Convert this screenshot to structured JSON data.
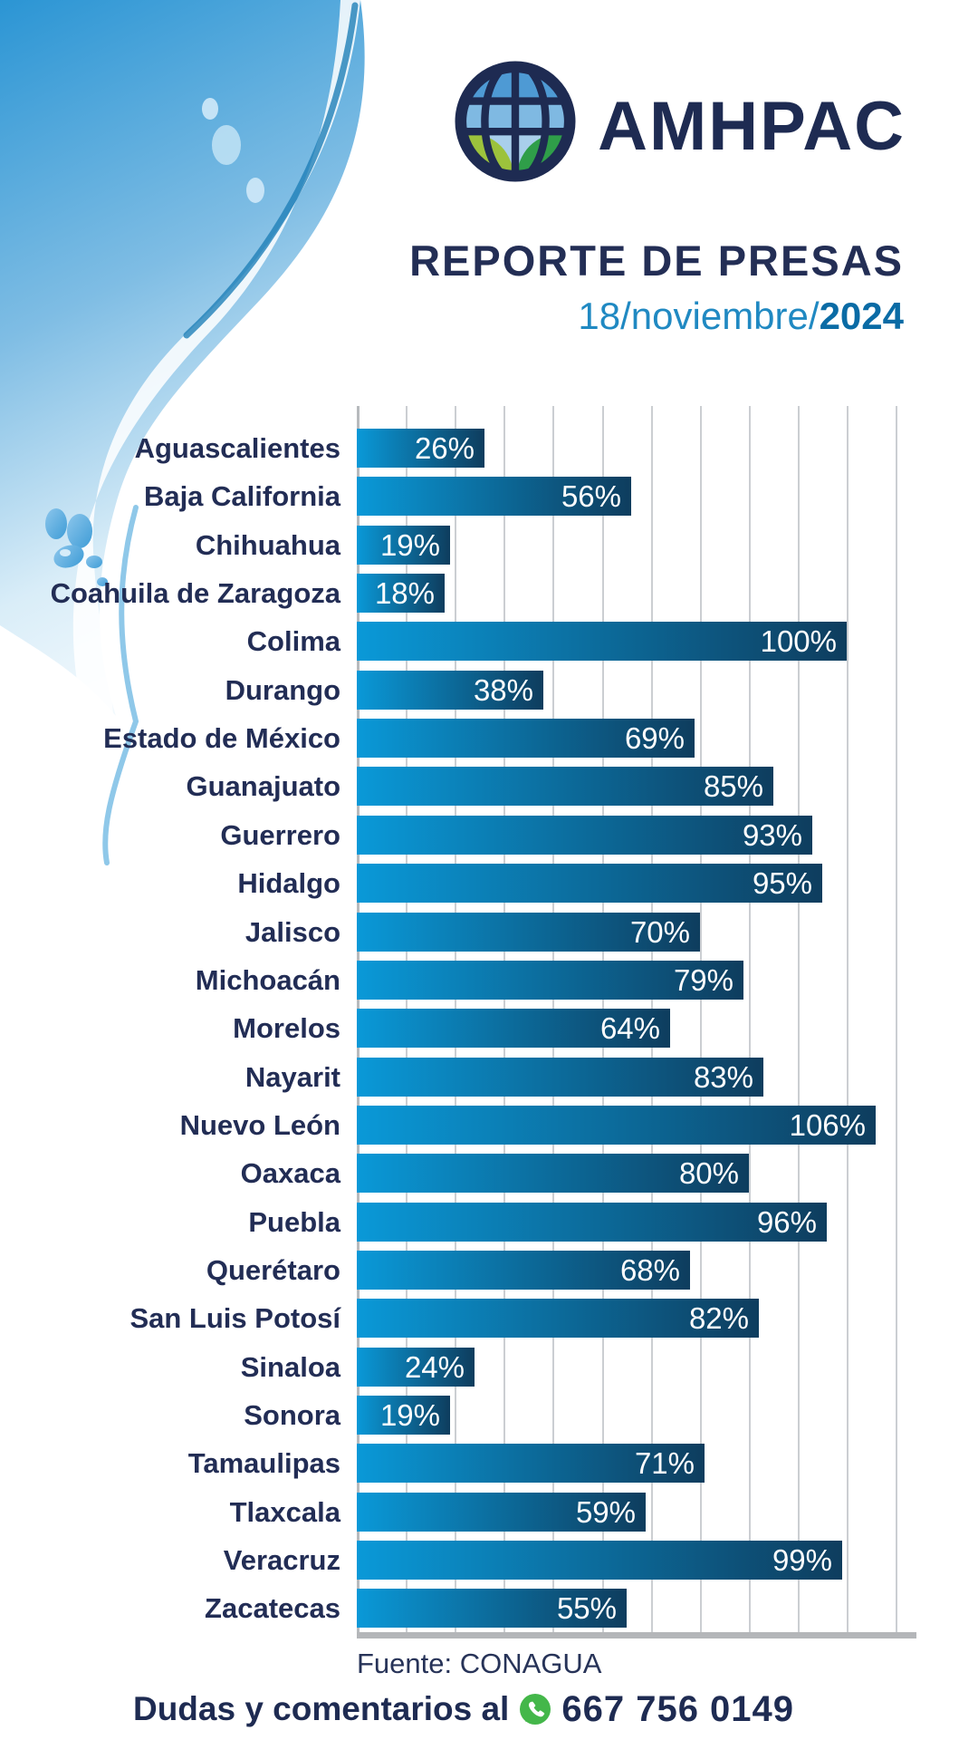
{
  "header": {
    "brand": "AMHPAC",
    "title": "REPORTE DE PRESAS",
    "date_prefix": "18/noviembre/",
    "date_year": "2024"
  },
  "chart_data": {
    "type": "bar",
    "orientation": "horizontal",
    "title": "REPORTE DE PRESAS",
    "unit": "%",
    "xlim": [
      0,
      110
    ],
    "gridline_step_pct": 10,
    "grid": true,
    "categories": [
      "Aguascalientes",
      "Baja California",
      "Chihuahua",
      "Coahuila de Zaragoza",
      "Colima",
      "Durango",
      "Estado de México",
      "Guanajuato",
      "Guerrero",
      "Hidalgo",
      "Jalisco",
      "Michoacán",
      "Morelos",
      "Nayarit",
      "Nuevo León",
      "Oaxaca",
      "Puebla",
      "Querétaro",
      "San Luis Potosí",
      "Sinaloa",
      "Sonora",
      "Tamaulipas",
      "Tlaxcala",
      "Veracruz",
      "Zacatecas"
    ],
    "values": [
      26,
      56,
      19,
      18,
      100,
      38,
      69,
      85,
      93,
      95,
      70,
      79,
      64,
      83,
      106,
      80,
      96,
      68,
      82,
      24,
      19,
      71,
      59,
      99,
      55
    ],
    "value_labels": [
      "26%",
      "56%",
      "19%",
      "18%",
      "100%",
      "38%",
      "69%",
      "85%",
      "93%",
      "95%",
      "70%",
      "79%",
      "64%",
      "83%",
      "106%",
      "80%",
      "96%",
      "68%",
      "82%",
      "24%",
      "19%",
      "71%",
      "59%",
      "99%",
      "55%"
    ],
    "bar_gradient_start": "#0a99d8",
    "bar_gradient_end": "#0e3d5e",
    "value_label_color": "#ffffff",
    "category_label_color": "#222d55"
  },
  "footer": {
    "source": "Fuente: CONAGUA",
    "contact_label": "Dudas y comentarios al",
    "phone": "667 756 0149"
  },
  "colors": {
    "brand_navy": "#1e2b52",
    "date_blue": "#2089c2",
    "date_year_blue": "#0a6ba5",
    "whatsapp_green": "#44b74a",
    "grid_gray": "#cbced2",
    "baseline_gray": "#b4b6b9"
  }
}
